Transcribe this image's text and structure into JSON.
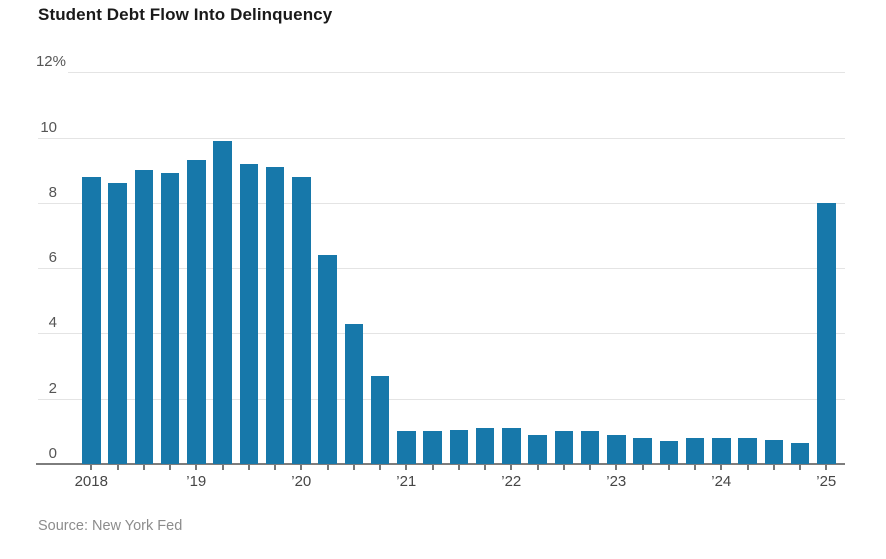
{
  "page": {
    "title": "Student Debt Flow Into Delinquency",
    "source": "Source: New York Fed"
  },
  "chart_data": {
    "type": "bar",
    "title": "Student Debt Flow Into Delinquency",
    "source": "Source: New York Fed",
    "unit": "%",
    "ylim": [
      0,
      12
    ],
    "y_ticks": [
      0,
      2,
      4,
      6,
      8,
      10,
      12
    ],
    "y_top_tick_label": "12%",
    "grid": true,
    "legend": "none",
    "categories": [
      "2018 Q1",
      "2018 Q2",
      "2018 Q3",
      "2018 Q4",
      "2019 Q1",
      "2019 Q2",
      "2019 Q3",
      "2019 Q4",
      "2020 Q1",
      "2020 Q2",
      "2020 Q3",
      "2020 Q4",
      "2021 Q1",
      "2021 Q2",
      "2021 Q3",
      "2021 Q4",
      "2022 Q1",
      "2022 Q2",
      "2022 Q3",
      "2022 Q4",
      "2023 Q1",
      "2023 Q2",
      "2023 Q3",
      "2023 Q4",
      "2024 Q1",
      "2024 Q2",
      "2024 Q3",
      "2024 Q4",
      "2025 Q1"
    ],
    "values": [
      8.8,
      8.6,
      9.0,
      8.9,
      9.3,
      9.9,
      9.2,
      9.1,
      8.8,
      6.4,
      4.3,
      2.7,
      1.0,
      1.0,
      1.05,
      1.1,
      1.1,
      0.9,
      1.0,
      1.0,
      0.9,
      0.8,
      0.7,
      0.8,
      0.8,
      0.8,
      0.75,
      0.65,
      8.0
    ],
    "x_tick_labels": [
      {
        "label": "2018",
        "bar_index": 0
      },
      {
        "label": "’19",
        "bar_index": 4
      },
      {
        "label": "’20",
        "bar_index": 8
      },
      {
        "label": "’21",
        "bar_index": 12
      },
      {
        "label": "’22",
        "bar_index": 16
      },
      {
        "label": "’23",
        "bar_index": 20
      },
      {
        "label": "’24",
        "bar_index": 24
      },
      {
        "label": "’25",
        "bar_index": 28
      }
    ],
    "bar_color": "#1778aa"
  },
  "colors": {
    "bar": "#1778aa",
    "grid": "#e4e4e4",
    "axis": "#7d7d7d",
    "title_text": "#1a1a1a",
    "tick_text": "#555555",
    "source_text": "#8c8c8c"
  }
}
